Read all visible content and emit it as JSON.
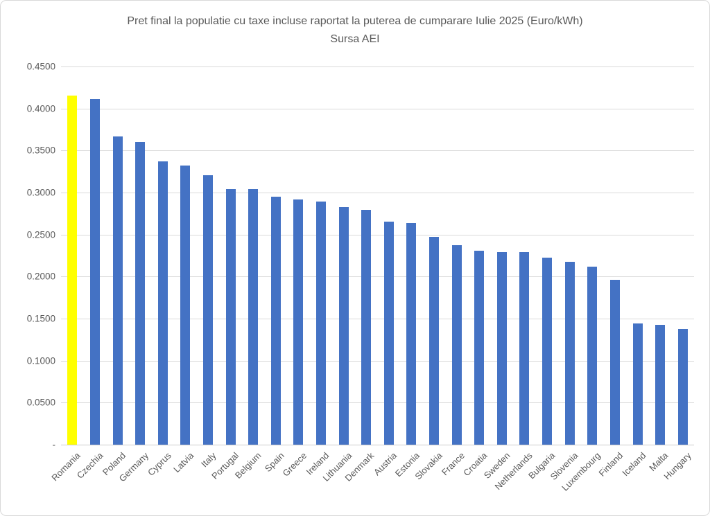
{
  "chart_data": {
    "type": "bar",
    "title": "Pret final la populatie cu taxe incluse raportat la puterea de cumparare Iulie 2025 (Euro/kWh)",
    "subtitle": "Sursa AEI",
    "xlabel": "",
    "ylabel": "",
    "ylim": [
      0,
      0.45
    ],
    "grid": true,
    "legend": false,
    "yticks": [
      {
        "value": 0.45,
        "label": "0.4500"
      },
      {
        "value": 0.4,
        "label": "0.4000"
      },
      {
        "value": 0.35,
        "label": "0.3500"
      },
      {
        "value": 0.3,
        "label": "0.3000"
      },
      {
        "value": 0.25,
        "label": "0.2500"
      },
      {
        "value": 0.2,
        "label": "0.2000"
      },
      {
        "value": 0.15,
        "label": "0.1500"
      },
      {
        "value": 0.1,
        "label": "0.1000"
      },
      {
        "value": 0.05,
        "label": "0.0500"
      },
      {
        "value": 0.0,
        "label": "-"
      }
    ],
    "categories": [
      "Romania",
      "Czechia",
      "Poland",
      "Germany",
      "Cyprus",
      "Latvia",
      "Italy",
      "Portugal",
      "Belgium",
      "Spain",
      "Greece",
      "Ireland",
      "Lithuania",
      "Denmark",
      "Austria",
      "Estonia",
      "Slovakia",
      "France",
      "Croatia",
      "Sweden",
      "Netherlands",
      "Bulgaria",
      "Slovenia",
      "Luxembourg",
      "Finland",
      "Iceland",
      "Malta",
      "Hungary"
    ],
    "values": [
      0.415,
      0.411,
      0.367,
      0.36,
      0.337,
      0.332,
      0.321,
      0.304,
      0.304,
      0.295,
      0.292,
      0.289,
      0.283,
      0.2795,
      0.2655,
      0.2635,
      0.2475,
      0.237,
      0.231,
      0.2295,
      0.2295,
      0.2225,
      0.2175,
      0.212,
      0.196,
      0.1445,
      0.143,
      0.138
    ],
    "colors": {
      "bar_default": "#4472C4",
      "bar_highlight": "#FFFF00",
      "highlight_index": 0,
      "gridline": "#D9D9D9",
      "axis_line": "#CCCCCC",
      "text": "#595959"
    }
  }
}
